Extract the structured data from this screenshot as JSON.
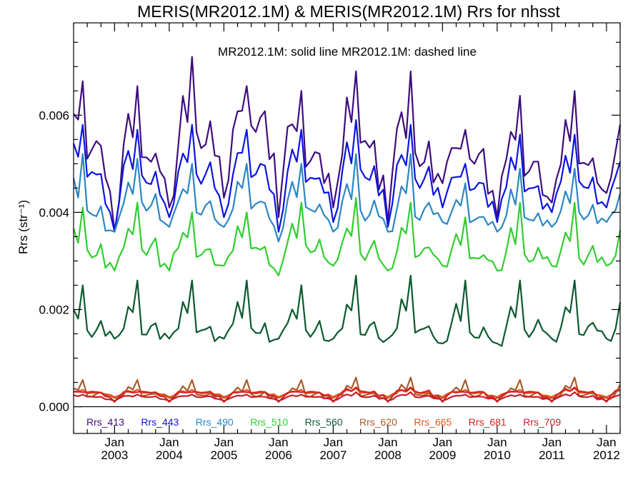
{
  "chart_data": {
    "type": "line",
    "title": "MERIS(MR2012.1M) & MERIS(MR2012.1M)  Rrs for nhsst",
    "subtitle": "MR2012.1M: solid line   MR2012.1M: dashed line",
    "ylabel": "Rrs (str⁻¹)",
    "xlabel": "",
    "x_start": "2002-04",
    "x_end": "2012-04",
    "ylim": [
      -0.00055,
      0.0079
    ],
    "yticks": [
      "0.000",
      "0.002",
      "0.004",
      "0.006"
    ],
    "xticks": [
      {
        "month": "Jan",
        "year": "2003"
      },
      {
        "month": "Jan",
        "year": "2004"
      },
      {
        "month": "Jan",
        "year": "2005"
      },
      {
        "month": "Jan",
        "year": "2006"
      },
      {
        "month": "Jan",
        "year": "2007"
      },
      {
        "month": "Jan",
        "year": "2008"
      },
      {
        "month": "Jan",
        "year": "2009"
      },
      {
        "month": "Jan",
        "year": "2010"
      },
      {
        "month": "Jan",
        "year": "2011"
      },
      {
        "month": "Jan",
        "year": "2012"
      }
    ],
    "legend_position": "bottom",
    "zero_line": true,
    "series": [
      {
        "name": "Rrs_413",
        "color": "#3d0d7e",
        "annual_peaks": [
          0.0067,
          0.0066,
          0.0072,
          0.0066,
          0.0065,
          0.0069,
          0.0069,
          0.0057,
          0.0064,
          0.0065
        ],
        "annual_troughs": [
          0.0036,
          0.0041,
          0.0043,
          0.0039,
          0.0041,
          0.0038,
          0.0046,
          0.0039,
          0.0042,
          0.0044
        ],
        "annual_baseline": [
          0.0052,
          0.005,
          0.0054,
          0.0058,
          0.005,
          0.0053,
          0.005,
          0.0051,
          0.0048,
          0.0049
        ]
      },
      {
        "name": "Rrs_443",
        "color": "#0b14e0",
        "annual_peaks": [
          0.0058,
          0.0057,
          0.0058,
          0.0057,
          0.0057,
          0.0059,
          0.0058,
          0.005,
          0.0056,
          0.0056
        ],
        "annual_troughs": [
          0.0036,
          0.0039,
          0.0039,
          0.0036,
          0.0038,
          0.0037,
          0.0041,
          0.0038,
          0.004,
          0.0041
        ],
        "annual_baseline": [
          0.0047,
          0.0046,
          0.0047,
          0.0048,
          0.0046,
          0.0047,
          0.0046,
          0.0045,
          0.0044,
          0.0045
        ]
      },
      {
        "name": "Rrs_490",
        "color": "#2b86c4",
        "annual_peaks": [
          0.0052,
          0.0051,
          0.005,
          0.005,
          0.005,
          0.0052,
          0.0052,
          0.0046,
          0.0049,
          0.0049
        ],
        "annual_troughs": [
          0.0036,
          0.0037,
          0.0037,
          0.0034,
          0.0036,
          0.0036,
          0.0038,
          0.0036,
          0.0037,
          0.0038
        ],
        "annual_baseline": [
          0.0039,
          0.0041,
          0.004,
          0.0041,
          0.004,
          0.0039,
          0.0039,
          0.0038,
          0.0038,
          0.0039
        ]
      },
      {
        "name": "Rrs_510",
        "color": "#2fce2f",
        "annual_peaks": [
          0.0041,
          0.0042,
          0.004,
          0.004,
          0.0042,
          0.0043,
          0.0042,
          0.0039,
          0.0042,
          0.0042
        ],
        "annual_troughs": [
          0.0028,
          0.0028,
          0.0029,
          0.0027,
          0.0029,
          0.0028,
          0.0029,
          0.0028,
          0.0029,
          0.0029
        ],
        "annual_baseline": [
          0.0031,
          0.0032,
          0.0031,
          0.0032,
          0.0032,
          0.0031,
          0.0031,
          0.003,
          0.003,
          0.003
        ]
      },
      {
        "name": "Rrs_560",
        "color": "#0b5a2e",
        "annual_peaks": [
          0.0025,
          0.0026,
          0.0026,
          0.0026,
          0.0025,
          0.0027,
          0.0027,
          0.0026,
          0.0026,
          0.0026
        ],
        "annual_troughs": [
          0.0014,
          0.0014,
          0.0014,
          0.0014,
          0.0014,
          0.0014,
          0.0013,
          0.0013,
          0.0014,
          0.0014
        ],
        "annual_baseline": [
          0.0015,
          0.0015,
          0.0015,
          0.0015,
          0.0015,
          0.0015,
          0.0015,
          0.0014,
          0.0015,
          0.0015
        ]
      },
      {
        "name": "Rrs_620",
        "color": "#a85a2a",
        "annual_peaks": [
          0.00055,
          0.00055,
          0.00055,
          0.00055,
          0.00055,
          0.0006,
          0.0006,
          0.00055,
          0.00055,
          0.0006
        ],
        "annual_troughs": [
          0.00018,
          0.00018,
          0.00018,
          0.00018,
          0.00018,
          0.00018,
          0.00018,
          0.00018,
          0.00018,
          0.00018
        ],
        "annual_baseline": [
          0.00022,
          0.00022,
          0.00022,
          0.00022,
          0.00022,
          0.00022,
          0.00022,
          0.00022,
          0.00022,
          0.00022
        ]
      },
      {
        "name": "Rrs_665",
        "color": "#e0561a",
        "annual_peaks": [
          0.00035,
          0.00035,
          0.00035,
          0.00035,
          0.00035,
          0.00038,
          0.00038,
          0.00035,
          0.00035,
          0.00038
        ],
        "annual_troughs": [
          0.0002,
          0.0002,
          0.0002,
          0.0002,
          0.0002,
          0.0002,
          0.0002,
          0.0002,
          0.0002,
          0.0002
        ],
        "annual_baseline": [
          0.00028,
          0.00028,
          0.00028,
          0.00028,
          0.00028,
          0.00028,
          0.00028,
          0.00028,
          0.00028,
          0.00028
        ]
      },
      {
        "name": "Rrs_681",
        "color": "#d42222",
        "annual_peaks": [
          0.0003,
          0.0003,
          0.0003,
          0.0003,
          0.0003,
          0.0004,
          0.0004,
          0.0003,
          0.0003,
          0.0004
        ],
        "annual_troughs": [
          0.0001,
          0.0001,
          0.0001,
          0.0001,
          0.0001,
          0.0001,
          0.0001,
          0.0001,
          0.0001,
          0.0001
        ],
        "annual_baseline": [
          0.0003,
          0.0003,
          0.0003,
          0.0003,
          0.0003,
          0.0003,
          0.0003,
          0.0003,
          0.0003,
          0.0003
        ]
      },
      {
        "name": "Rrs_709",
        "color": "#c81e2a",
        "annual_peaks": [
          0.00025,
          0.00025,
          0.00025,
          0.00025,
          0.00025,
          0.0003,
          0.0003,
          0.00025,
          0.00025,
          0.0003
        ],
        "annual_troughs": [
          0.00012,
          0.00012,
          0.00012,
          0.00012,
          0.00012,
          0.00012,
          0.00012,
          0.00012,
          0.00012,
          0.00012
        ],
        "annual_baseline": [
          0.0002,
          0.0002,
          0.0002,
          0.0002,
          0.0002,
          0.0002,
          0.0002,
          0.0002,
          0.0002,
          0.0002
        ]
      }
    ]
  }
}
